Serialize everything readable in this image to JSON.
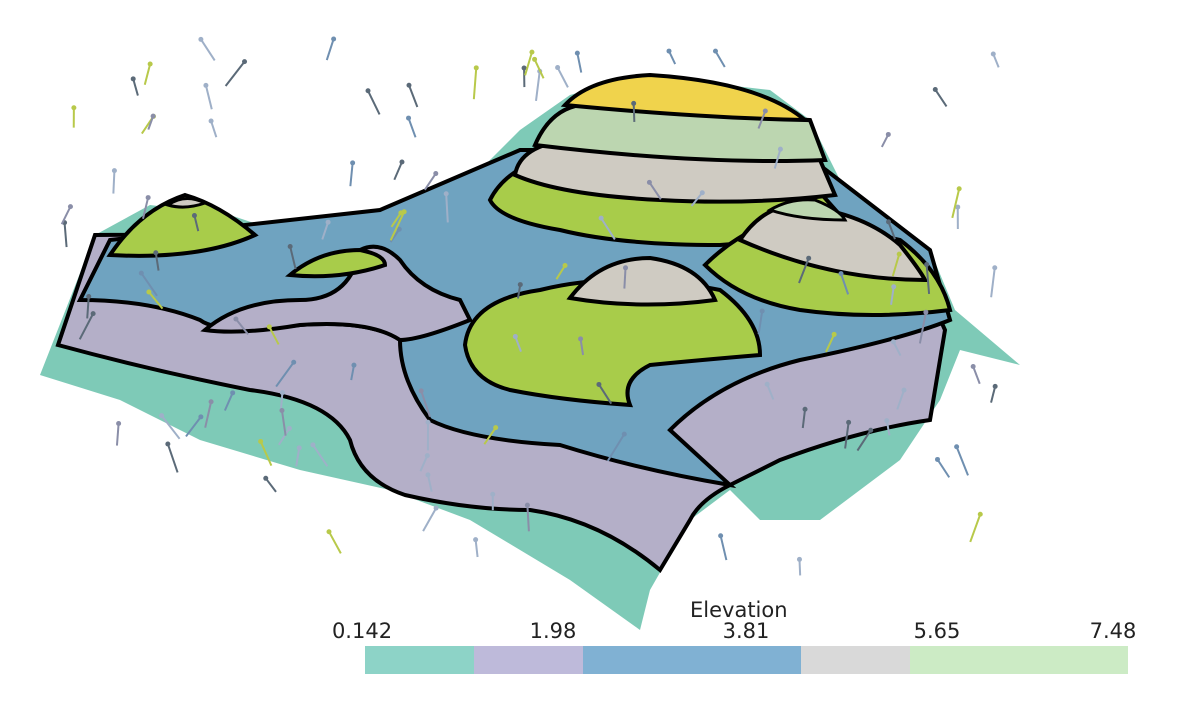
{
  "scalar_bar": {
    "title": "Elevation",
    "ticks": [
      "0.142",
      "1.98",
      "3.81",
      "5.65",
      "7.48"
    ],
    "range": [
      0.142,
      7.48
    ],
    "bands": [
      {
        "color": "#8dd3c7",
        "span": 1
      },
      {
        "color": "#bebada",
        "span": 1
      },
      {
        "color": "#80b1d3",
        "span": 2
      },
      {
        "color": "#d9d9d9",
        "span": 1
      },
      {
        "color": "#ccebc5",
        "span": 2
      }
    ]
  },
  "surface_colors": {
    "low": "#7ecab7",
    "lower_mid": "#b4afc8",
    "mid": "#6fa3c0",
    "upper_mid": "#a8cc4a",
    "high": "#cfcbc2",
    "higher": "#bcd6b0",
    "peak": "#f0d34c",
    "contour": "#000000"
  }
}
